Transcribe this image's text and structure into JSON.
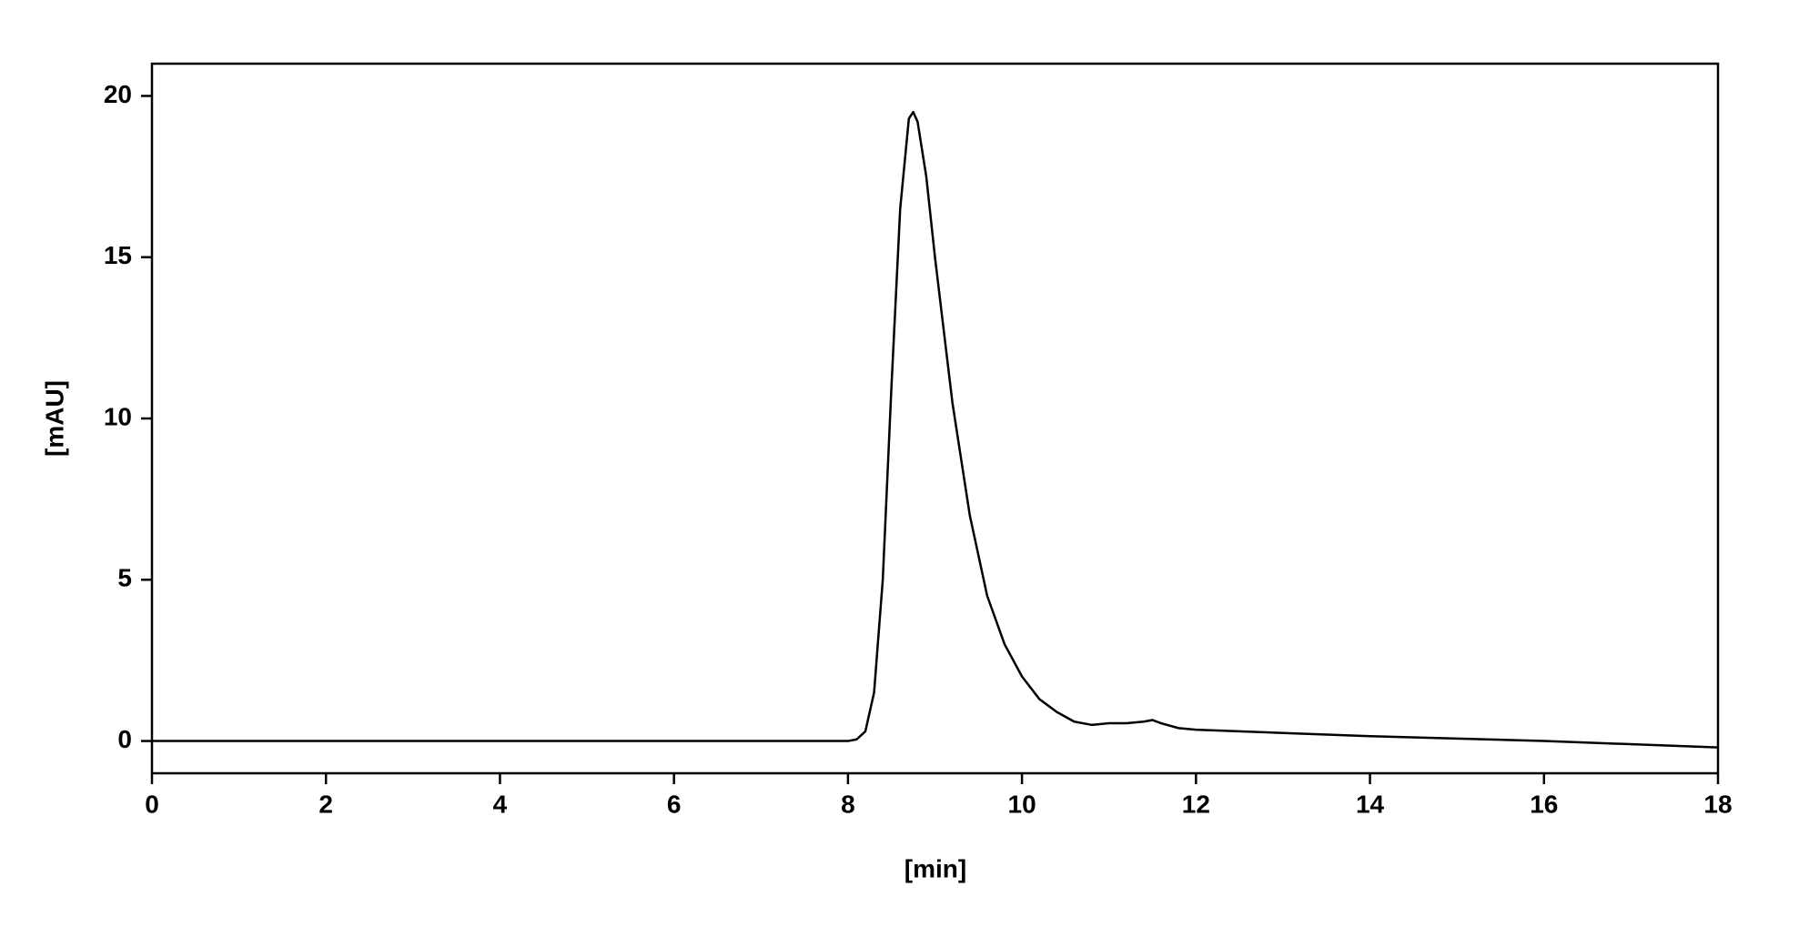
{
  "chart_data": {
    "type": "line",
    "x_label": "[min]",
    "y_label": "[mAU]",
    "xlim": [
      0,
      18
    ],
    "ylim": [
      -1,
      21
    ],
    "xticks": [
      0,
      2,
      4,
      6,
      8,
      10,
      12,
      14,
      16,
      18
    ],
    "yticks": [
      0,
      5,
      10,
      15,
      20
    ],
    "grid": false,
    "series": [
      {
        "color": "#000000",
        "x": [
          0,
          2,
          4,
          6,
          8,
          8.1,
          8.2,
          8.3,
          8.4,
          8.5,
          8.6,
          8.7,
          8.75,
          8.8,
          8.9,
          9.0,
          9.2,
          9.4,
          9.6,
          9.8,
          10.0,
          10.2,
          10.4,
          10.6,
          10.8,
          11.0,
          11.2,
          11.4,
          11.5,
          11.6,
          11.8,
          12,
          14,
          16,
          18
        ],
        "values": [
          0,
          0,
          0,
          0,
          0,
          0.05,
          0.3,
          1.5,
          5,
          11,
          16.5,
          19.3,
          19.5,
          19.2,
          17.5,
          15,
          10.5,
          7,
          4.5,
          3,
          2,
          1.3,
          0.9,
          0.6,
          0.5,
          0.55,
          0.55,
          0.6,
          0.65,
          0.55,
          0.4,
          0.35,
          0.15,
          0,
          -0.2
        ]
      }
    ]
  }
}
